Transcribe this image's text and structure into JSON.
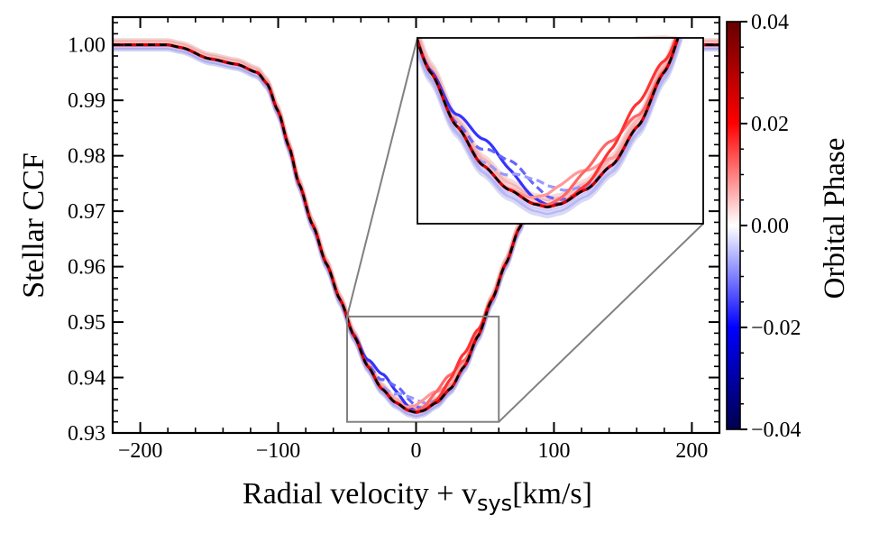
{
  "chart_data": {
    "type": "line",
    "xlabel": "Radial velocity + v",
    "xlabel_sub": "sys",
    "xlabel_unit": "[km/s]",
    "ylabel": "Stellar CCF",
    "xlim": [
      -220,
      220
    ],
    "ylim": [
      0.93,
      1.005
    ],
    "xticks": [
      -200,
      -100,
      0,
      100,
      200
    ],
    "xtick_labels": [
      "−200",
      "−100",
      "0",
      "100",
      "200"
    ],
    "yticks": [
      0.93,
      0.94,
      0.95,
      0.96,
      0.97,
      0.98,
      0.99,
      1.0
    ],
    "ytick_labels": [
      "0.93",
      "0.94",
      "0.95",
      "0.96",
      "0.97",
      "0.98",
      "0.99",
      "1.00"
    ],
    "profile": {
      "x": [
        -220,
        -200,
        -180,
        -170,
        -150,
        -130,
        -115,
        -108,
        -100,
        -92,
        -85,
        -75,
        -65,
        -55,
        -45,
        -35,
        -25,
        -15,
        -5,
        0,
        5,
        15,
        25,
        35,
        45,
        55,
        65,
        75,
        85,
        95,
        105,
        115,
        125,
        135,
        145,
        160,
        180,
        200,
        220
      ],
      "y": [
        1.0,
        1.0,
        1.0,
        0.9995,
        0.9975,
        0.9965,
        0.995,
        0.993,
        0.988,
        0.9815,
        0.975,
        0.9675,
        0.9605,
        0.954,
        0.9475,
        0.942,
        0.938,
        0.9355,
        0.934,
        0.9337,
        0.934,
        0.9355,
        0.938,
        0.942,
        0.9475,
        0.954,
        0.9605,
        0.967,
        0.974,
        0.98,
        0.9865,
        0.992,
        0.996,
        0.9985,
        0.9998,
        1.0003,
        1.0005,
        1.0,
        1.0
      ]
    },
    "in_transit_series": [
      {
        "phase": -0.016,
        "center": -22,
        "depth": 0.0028,
        "width": 14,
        "style": "solid"
      },
      {
        "phase": -0.012,
        "center": -14,
        "depth": 0.003,
        "width": 14,
        "style": "dashed"
      },
      {
        "phase": -0.008,
        "center": -5,
        "depth": 0.0025,
        "width": 14,
        "style": "dashed"
      },
      {
        "phase": 0.008,
        "center": 10,
        "depth": 0.0022,
        "width": 14,
        "style": "solid"
      },
      {
        "phase": 0.012,
        "center": 22,
        "depth": 0.0026,
        "width": 14,
        "style": "solid"
      },
      {
        "phase": 0.016,
        "center": 33,
        "depth": 0.0024,
        "width": 14,
        "style": "solid"
      }
    ],
    "inset": {
      "xlim": [
        -50,
        60
      ],
      "ylim": [
        0.932,
        0.951
      ]
    },
    "colorbar": {
      "label": "Orbital Phase",
      "range": [
        -0.04,
        0.04
      ],
      "ticks": [
        0.04,
        0.02,
        0.0,
        -0.02,
        -0.04
      ],
      "tick_labels": [
        "0.04",
        "0.02",
        "0.00",
        "−0.02",
        "−0.04"
      ],
      "colors": [
        "#00004d",
        "#0000ff",
        "#ffffff",
        "#ff0000",
        "#660000"
      ]
    }
  }
}
